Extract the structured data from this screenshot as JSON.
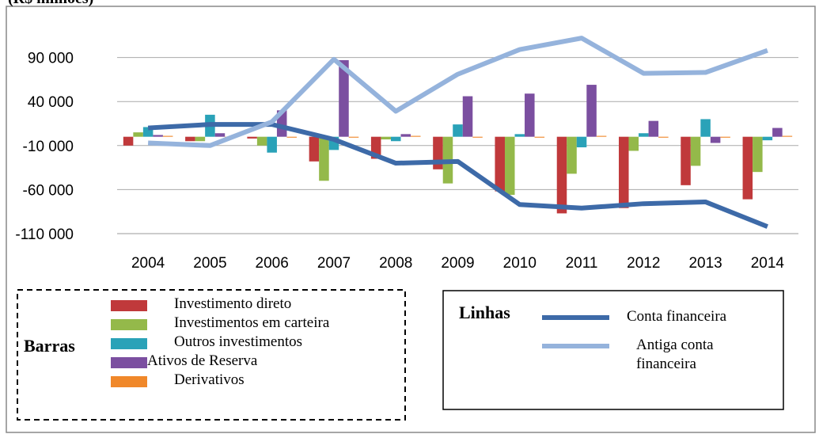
{
  "chart_data": {
    "type": "bar",
    "y_label": "(R$ milhões)",
    "categories": [
      "2004",
      "2005",
      "2006",
      "2007",
      "2008",
      "2009",
      "2010",
      "2011",
      "2012",
      "2013",
      "2014"
    ],
    "ylim": [
      -110000,
      140000
    ],
    "yticks": [
      {
        "value": -110000,
        "label": "-110 000"
      },
      {
        "value": -60000,
        "label": "-60 000"
      },
      {
        "value": -10000,
        "label": "-10 000"
      },
      {
        "value": 40000,
        "label": "40 000"
      },
      {
        "value": 90000,
        "label": "90 000"
      }
    ],
    "grid": true,
    "bar_legend_title": "Barras",
    "line_legend_title": "Linhas",
    "series": [
      {
        "name": "Investimento direto",
        "type": "bar",
        "color": "#c0393b",
        "values": [
          -10000,
          -5000,
          -2000,
          -28000,
          -25000,
          -37000,
          -62000,
          -87000,
          -81000,
          -55000,
          -71000
        ]
      },
      {
        "name": "Investimentos em carteira",
        "type": "bar",
        "color": "#94b94a",
        "values": [
          5000,
          -5000,
          -10000,
          -50000,
          -3000,
          -53000,
          -66000,
          -42000,
          -16000,
          -33000,
          -40000
        ]
      },
      {
        "name": "Outros investimentos",
        "type": "bar",
        "color": "#2aa2b8",
        "values": [
          11000,
          25000,
          -18000,
          -15000,
          -5000,
          14000,
          3000,
          -12000,
          4000,
          20000,
          -4000
        ]
      },
      {
        "name": "Ativos de Reserva",
        "type": "bar",
        "color": "#7b4fa0",
        "values": [
          2000,
          4000,
          30000,
          87000,
          3000,
          46000,
          49000,
          59000,
          18000,
          -7000,
          10000
        ]
      },
      {
        "name": "Derivativos",
        "type": "bar",
        "color": "#f0882a",
        "values": [
          1000,
          -1000,
          -1000,
          -1000,
          1000,
          -1000,
          -1000,
          1000,
          -1000,
          -1000,
          1000
        ]
      },
      {
        "name": "Conta financeira",
        "type": "line",
        "color": "#3d6aa8",
        "values": [
          10000,
          14000,
          14000,
          -3000,
          -30000,
          -28000,
          -77000,
          -81000,
          -76000,
          -74000,
          -102000
        ]
      },
      {
        "name": "Antiga conta financeira",
        "type": "line",
        "color": "#95b3dc",
        "values": [
          -7000,
          -10000,
          17000,
          88000,
          29000,
          71000,
          99000,
          112000,
          72000,
          73000,
          98000
        ]
      }
    ]
  }
}
